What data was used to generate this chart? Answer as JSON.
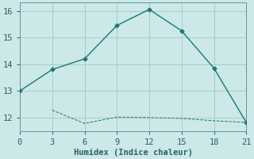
{
  "xlabel": "Humidex (Indice chaleur)",
  "background_color": "#cce8e8",
  "grid_color": "#aacccc",
  "line_color": "#1a7a6e",
  "line1_x": [
    0,
    3,
    6,
    9,
    12,
    15,
    18,
    21
  ],
  "line1_y": [
    13.0,
    13.8,
    14.2,
    15.45,
    16.05,
    15.25,
    13.85,
    11.82
  ],
  "line2_x": [
    3,
    6,
    9,
    12,
    15,
    18,
    21
  ],
  "line2_y": [
    12.28,
    11.78,
    12.02,
    12.0,
    11.97,
    11.88,
    11.82
  ],
  "xlim": [
    0,
    21
  ],
  "ylim": [
    11.5,
    16.3
  ],
  "yticks": [
    12,
    13,
    14,
    15,
    16
  ],
  "xticks": [
    0,
    3,
    6,
    9,
    12,
    15,
    18,
    21
  ],
  "marker": "D",
  "marker_size": 2.5,
  "line_width": 1.0,
  "font_size": 7.5
}
